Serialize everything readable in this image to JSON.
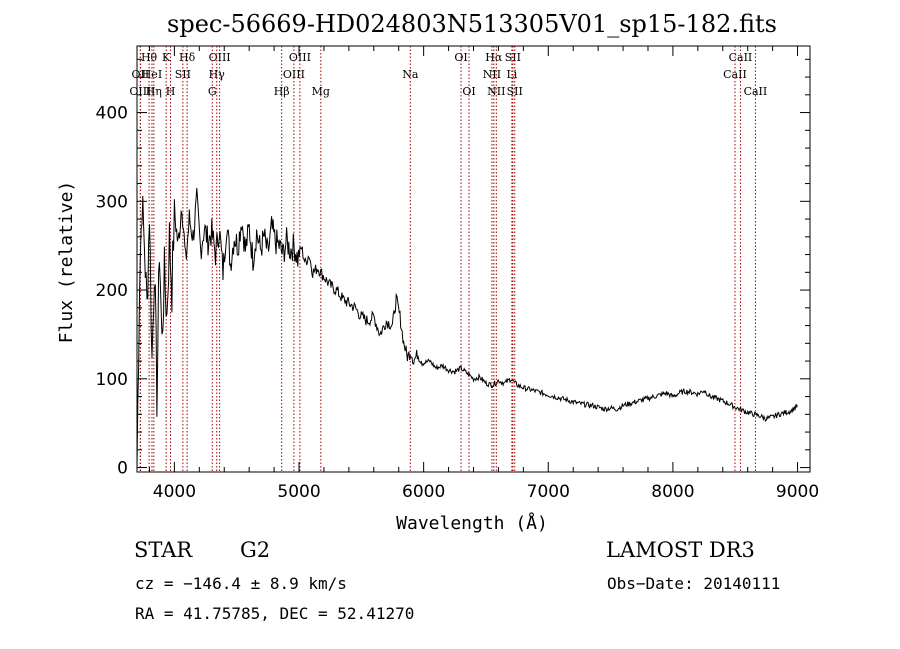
{
  "chart_data": {
    "type": "line",
    "title": "spec-56669-HD024803N513305V01_sp15-182.fits",
    "xlabel": "Wavelength (Å)",
    "ylabel": "Flux (relative)",
    "xlim": [
      3700,
      9100
    ],
    "ylim": [
      -5,
      475
    ],
    "xticks": [
      4000,
      5000,
      6000,
      7000,
      8000,
      9000
    ],
    "yticks": [
      0,
      100,
      200,
      300,
      400
    ],
    "grid": false,
    "series": [
      {
        "name": "spectrum",
        "x": [
          3700,
          3720,
          3740,
          3760,
          3780,
          3800,
          3820,
          3840,
          3860,
          3880,
          3900,
          3920,
          3940,
          3960,
          3980,
          4000,
          4030,
          4060,
          4090,
          4120,
          4150,
          4180,
          4210,
          4240,
          4270,
          4300,
          4330,
          4360,
          4390,
          4420,
          4450,
          4480,
          4510,
          4540,
          4570,
          4600,
          4630,
          4660,
          4690,
          4720,
          4750,
          4780,
          4810,
          4840,
          4870,
          4900,
          4930,
          4960,
          4990,
          5020,
          5050,
          5080,
          5110,
          5150,
          5200,
          5250,
          5300,
          5350,
          5400,
          5450,
          5500,
          5550,
          5600,
          5650,
          5700,
          5750,
          5780,
          5810,
          5840,
          5870,
          5900,
          5920,
          5950,
          6000,
          6050,
          6100,
          6150,
          6200,
          6250,
          6300,
          6350,
          6400,
          6450,
          6500,
          6550,
          6600,
          6650,
          6700,
          6750,
          6800,
          6850,
          6900,
          6950,
          7000,
          7050,
          7100,
          7150,
          7200,
          7250,
          7300,
          7350,
          7400,
          7450,
          7500,
          7550,
          7600,
          7650,
          7700,
          7750,
          7800,
          7850,
          7900,
          7950,
          8000,
          8050,
          8100,
          8150,
          8200,
          8250,
          8300,
          8350,
          8400,
          8450,
          8500,
          8550,
          8600,
          8650,
          8700,
          8750,
          8800,
          8850,
          8900,
          8950,
          9000
        ],
        "y": [
          0,
          210,
          300,
          250,
          180,
          290,
          120,
          230,
          80,
          250,
          140,
          220,
          170,
          260,
          200,
          290,
          250,
          300,
          230,
          280,
          260,
          300,
          245,
          270,
          255,
          265,
          240,
          270,
          220,
          275,
          230,
          260,
          250,
          280,
          245,
          270,
          235,
          265,
          245,
          260,
          240,
          270,
          255,
          250,
          240,
          255,
          245,
          250,
          235,
          248,
          230,
          240,
          220,
          225,
          215,
          205,
          200,
          190,
          185,
          180,
          170,
          165,
          170,
          150,
          165,
          160,
          190,
          170,
          140,
          125,
          130,
          120,
          128,
          118,
          120,
          112,
          115,
          110,
          108,
          112,
          106,
          100,
          102,
          95,
          93,
          98,
          95,
          100,
          93,
          90,
          88,
          86,
          84,
          82,
          80,
          78,
          76,
          74,
          72,
          71,
          70,
          68,
          66,
          67,
          66,
          70,
          72,
          74,
          76,
          78,
          80,
          82,
          84,
          80,
          84,
          86,
          85,
          83,
          87,
          80,
          78,
          75,
          72,
          68,
          65,
          62,
          60,
          58,
          55,
          57,
          60,
          62,
          64,
          70
        ]
      }
    ],
    "spectral_lines": [
      {
        "name": "Hθ",
        "x": 3797,
        "row": 1
      },
      {
        "name": "OII",
        "x": 3727,
        "row": 2
      },
      {
        "name": "OIII",
        "x": 3727,
        "row": 3
      },
      {
        "name": "HeI",
        "x": 3820,
        "row": 2
      },
      {
        "name": "Hη",
        "x": 3835,
        "row": 3
      },
      {
        "name": "K",
        "x": 3934,
        "row": 1
      },
      {
        "name": "H",
        "x": 3969,
        "row": 3
      },
      {
        "name": "Hδ",
        "x": 4102,
        "row": 1
      },
      {
        "name": "SII",
        "x": 4068,
        "row": 2
      },
      {
        "name": "OIII",
        "x": 4363,
        "row": 1
      },
      {
        "name": "Hγ",
        "x": 4340,
        "row": 2
      },
      {
        "name": "G",
        "x": 4304,
        "row": 3
      },
      {
        "name": "Hβ",
        "x": 4861,
        "row": 3
      },
      {
        "name": "OIII",
        "x": 5007,
        "row": 1
      },
      {
        "name": "OIII",
        "x": 4959,
        "row": 2
      },
      {
        "name": "Mg",
        "x": 5175,
        "row": 3
      },
      {
        "name": "Na",
        "x": 5893,
        "row": 2
      },
      {
        "name": "OI",
        "x": 6300,
        "row": 1
      },
      {
        "name": "OI",
        "x": 6364,
        "row": 3
      },
      {
        "name": "Hα",
        "x": 6563,
        "row": 1
      },
      {
        "name": "NII",
        "x": 6548,
        "row": 2
      },
      {
        "name": "NII",
        "x": 6583,
        "row": 3
      },
      {
        "name": "SII",
        "x": 6716,
        "row": 1
      },
      {
        "name": "Li",
        "x": 6708,
        "row": 2
      },
      {
        "name": "SII",
        "x": 6731,
        "row": 3
      },
      {
        "name": "CaII",
        "x": 8542,
        "row": 1
      },
      {
        "name": "CaII",
        "x": 8498,
        "row": 2
      },
      {
        "name": "CaII",
        "x": 8662,
        "row": 3
      }
    ]
  },
  "info": {
    "object_type": "STAR",
    "subclass": "G2",
    "survey": "LAMOST DR3",
    "cz": "cz = −146.4 ± 8.9 km/s",
    "obs_date": "Obs−Date: 20140111",
    "coords": "RA =  41.75785, DEC =  52.41270"
  }
}
